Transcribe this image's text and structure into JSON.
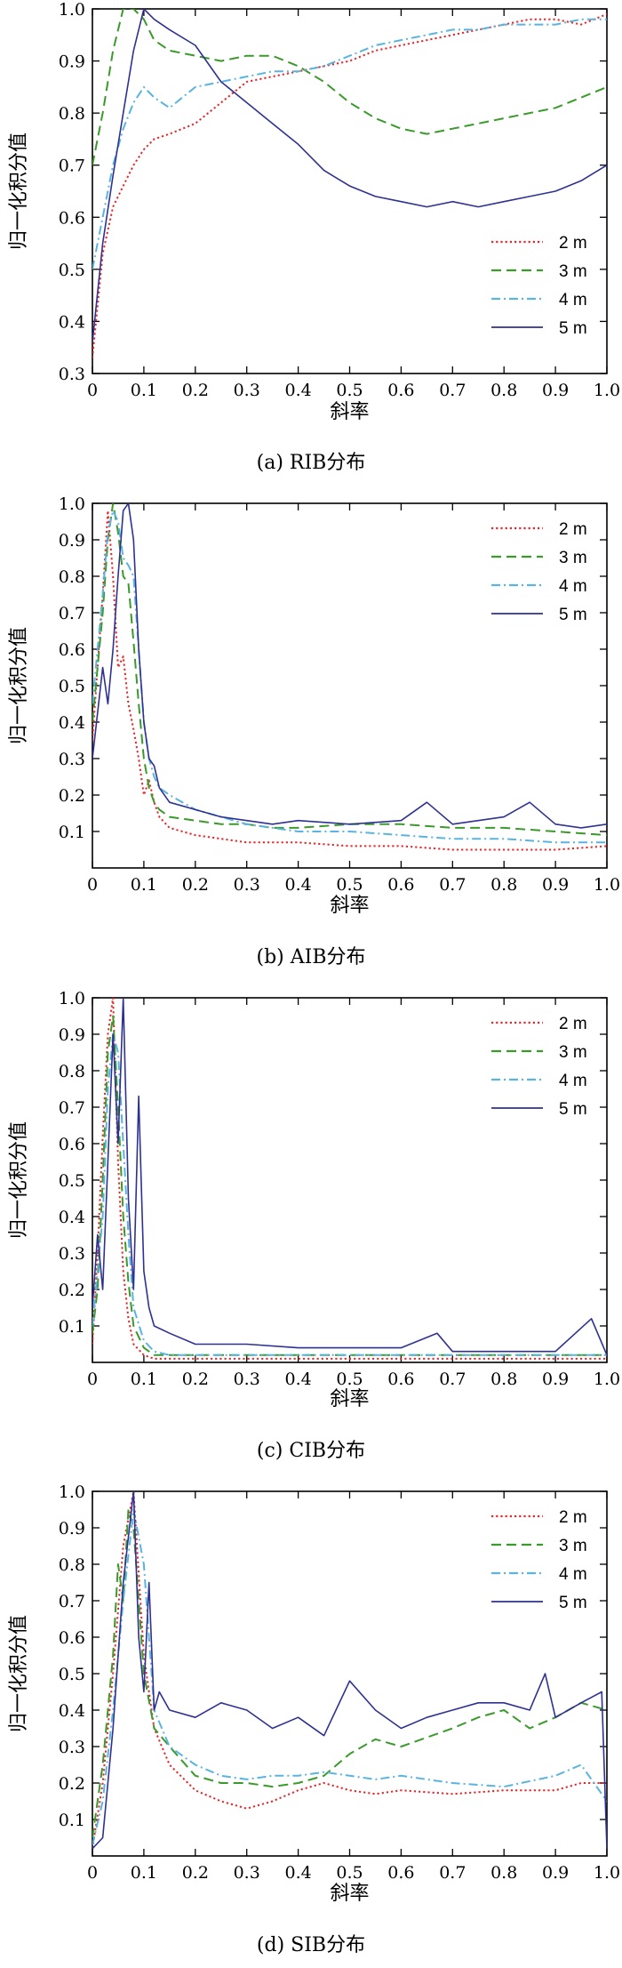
{
  "chart_data": [
    {
      "type": "line",
      "caption": "(a) RIB分布",
      "xlabel": "斜率",
      "ylabel": "归一化积分值",
      "xlim": [
        0,
        1.0
      ],
      "ylim": [
        0.3,
        1.0
      ],
      "xticks": [
        "0",
        "0.1",
        "0.2",
        "0.3",
        "0.4",
        "0.5",
        "0.6",
        "0.7",
        "0.8",
        "0.9",
        "1.0"
      ],
      "yticks": [
        "0.3",
        "0.4",
        "0.5",
        "0.6",
        "0.7",
        "0.8",
        "0.9",
        "1.0"
      ],
      "legend_position": "bottom-right",
      "series": [
        {
          "name": "2 m",
          "color": "#e8262a",
          "dash": "dotted",
          "x": [
            0,
            0.02,
            0.04,
            0.06,
            0.08,
            0.1,
            0.12,
            0.15,
            0.2,
            0.25,
            0.3,
            0.35,
            0.4,
            0.45,
            0.5,
            0.55,
            0.6,
            0.65,
            0.7,
            0.75,
            0.8,
            0.85,
            0.9,
            0.95,
            1.0
          ],
          "y": [
            0.33,
            0.53,
            0.62,
            0.66,
            0.7,
            0.73,
            0.75,
            0.76,
            0.78,
            0.82,
            0.86,
            0.87,
            0.88,
            0.89,
            0.9,
            0.92,
            0.93,
            0.94,
            0.95,
            0.96,
            0.97,
            0.98,
            0.98,
            0.97,
            0.99
          ]
        },
        {
          "name": "3 m",
          "color": "#3a9a2a",
          "dash": "dashed",
          "x": [
            0,
            0.02,
            0.04,
            0.06,
            0.08,
            0.1,
            0.12,
            0.15,
            0.2,
            0.25,
            0.3,
            0.35,
            0.4,
            0.45,
            0.5,
            0.55,
            0.6,
            0.65,
            0.7,
            0.75,
            0.8,
            0.85,
            0.9,
            0.95,
            1.0
          ],
          "y": [
            0.7,
            0.8,
            0.92,
            1.0,
            1.0,
            0.98,
            0.94,
            0.92,
            0.91,
            0.9,
            0.91,
            0.91,
            0.89,
            0.86,
            0.82,
            0.79,
            0.77,
            0.76,
            0.77,
            0.78,
            0.79,
            0.8,
            0.81,
            0.83,
            0.85
          ]
        },
        {
          "name": "4 m",
          "color": "#5ab4e0",
          "dash": "dashdot",
          "x": [
            0,
            0.02,
            0.04,
            0.06,
            0.08,
            0.1,
            0.12,
            0.15,
            0.2,
            0.25,
            0.3,
            0.35,
            0.4,
            0.45,
            0.5,
            0.55,
            0.6,
            0.65,
            0.7,
            0.75,
            0.8,
            0.85,
            0.9,
            0.95,
            1.0
          ],
          "y": [
            0.5,
            0.6,
            0.7,
            0.77,
            0.82,
            0.85,
            0.83,
            0.81,
            0.85,
            0.86,
            0.87,
            0.88,
            0.88,
            0.89,
            0.91,
            0.93,
            0.94,
            0.95,
            0.96,
            0.96,
            0.97,
            0.97,
            0.97,
            0.98,
            0.98
          ]
        },
        {
          "name": "5 m",
          "color": "#2e3192",
          "dash": "solid",
          "x": [
            0,
            0.02,
            0.04,
            0.06,
            0.08,
            0.1,
            0.12,
            0.15,
            0.2,
            0.25,
            0.3,
            0.35,
            0.4,
            0.45,
            0.5,
            0.55,
            0.6,
            0.65,
            0.7,
            0.75,
            0.8,
            0.85,
            0.9,
            0.95,
            1.0
          ],
          "y": [
            0.36,
            0.55,
            0.68,
            0.8,
            0.92,
            1.0,
            0.98,
            0.96,
            0.93,
            0.86,
            0.82,
            0.78,
            0.74,
            0.69,
            0.66,
            0.64,
            0.63,
            0.62,
            0.63,
            0.62,
            0.63,
            0.64,
            0.65,
            0.67,
            0.7
          ]
        }
      ]
    },
    {
      "type": "line",
      "caption": "(b) AIB分布",
      "xlabel": "斜率",
      "ylabel": "归一化积分值",
      "xlim": [
        0,
        1.0
      ],
      "ylim": [
        0,
        1.0
      ],
      "xticks": [
        "0",
        "0.1",
        "0.2",
        "0.3",
        "0.4",
        "0.5",
        "0.6",
        "0.7",
        "0.8",
        "0.9",
        "1.0"
      ],
      "yticks": [
        "0.1",
        "0.2",
        "0.3",
        "0.4",
        "0.5",
        "0.6",
        "0.7",
        "0.8",
        "0.9",
        "1.0"
      ],
      "legend_position": "top-right",
      "series": [
        {
          "name": "2 m",
          "color": "#e8262a",
          "dash": "dotted",
          "x": [
            0,
            0.02,
            0.03,
            0.04,
            0.05,
            0.06,
            0.07,
            0.08,
            0.09,
            0.1,
            0.11,
            0.12,
            0.13,
            0.15,
            0.2,
            0.25,
            0.3,
            0.35,
            0.4,
            0.5,
            0.6,
            0.7,
            0.8,
            0.9,
            1.0
          ],
          "y": [
            0.35,
            0.75,
            0.98,
            0.8,
            0.55,
            0.58,
            0.45,
            0.38,
            0.3,
            0.2,
            0.24,
            0.18,
            0.14,
            0.11,
            0.09,
            0.08,
            0.07,
            0.07,
            0.07,
            0.06,
            0.06,
            0.05,
            0.05,
            0.05,
            0.06
          ]
        },
        {
          "name": "3 m",
          "color": "#3a9a2a",
          "dash": "dashed",
          "x": [
            0,
            0.02,
            0.03,
            0.04,
            0.05,
            0.06,
            0.07,
            0.08,
            0.09,
            0.1,
            0.11,
            0.12,
            0.13,
            0.15,
            0.2,
            0.25,
            0.3,
            0.35,
            0.4,
            0.5,
            0.6,
            0.7,
            0.8,
            0.9,
            1.0
          ],
          "y": [
            0.4,
            0.7,
            0.9,
            1.0,
            0.92,
            0.8,
            0.78,
            0.62,
            0.45,
            0.3,
            0.22,
            0.18,
            0.16,
            0.14,
            0.13,
            0.12,
            0.12,
            0.11,
            0.11,
            0.12,
            0.12,
            0.11,
            0.11,
            0.1,
            0.09
          ]
        },
        {
          "name": "4 m",
          "color": "#5ab4e0",
          "dash": "dashdot",
          "x": [
            0,
            0.02,
            0.03,
            0.04,
            0.05,
            0.06,
            0.07,
            0.08,
            0.09,
            0.1,
            0.11,
            0.12,
            0.13,
            0.15,
            0.2,
            0.25,
            0.3,
            0.35,
            0.4,
            0.5,
            0.6,
            0.7,
            0.8,
            0.9,
            1.0
          ],
          "y": [
            0.45,
            0.75,
            0.92,
            0.98,
            0.95,
            0.85,
            0.83,
            0.8,
            0.6,
            0.4,
            0.3,
            0.25,
            0.22,
            0.2,
            0.16,
            0.14,
            0.12,
            0.11,
            0.1,
            0.1,
            0.09,
            0.08,
            0.08,
            0.07,
            0.07
          ]
        },
        {
          "name": "5 m",
          "color": "#2e3192",
          "dash": "solid",
          "x": [
            0,
            0.02,
            0.03,
            0.04,
            0.05,
            0.06,
            0.07,
            0.08,
            0.09,
            0.1,
            0.11,
            0.12,
            0.13,
            0.15,
            0.2,
            0.25,
            0.3,
            0.35,
            0.4,
            0.5,
            0.6,
            0.65,
            0.7,
            0.8,
            0.85,
            0.9,
            0.95,
            1.0
          ],
          "y": [
            0.3,
            0.55,
            0.45,
            0.6,
            0.8,
            0.98,
            1.0,
            0.9,
            0.6,
            0.4,
            0.3,
            0.28,
            0.22,
            0.18,
            0.16,
            0.14,
            0.13,
            0.12,
            0.13,
            0.12,
            0.13,
            0.18,
            0.12,
            0.14,
            0.18,
            0.12,
            0.11,
            0.12
          ]
        }
      ]
    },
    {
      "type": "line",
      "caption": "(c) CIB分布",
      "xlabel": "斜率",
      "ylabel": "归一化积分值",
      "xlim": [
        0,
        1.0
      ],
      "ylim": [
        0,
        1.0
      ],
      "xticks": [
        "0",
        "0.1",
        "0.2",
        "0.3",
        "0.4",
        "0.5",
        "0.6",
        "0.7",
        "0.8",
        "0.9",
        "1.0"
      ],
      "yticks": [
        "0.1",
        "0.2",
        "0.3",
        "0.4",
        "0.5",
        "0.6",
        "0.7",
        "0.8",
        "0.9",
        "1.0"
      ],
      "legend_position": "top-right",
      "series": [
        {
          "name": "2 m",
          "color": "#e8262a",
          "dash": "dotted",
          "x": [
            0,
            0.01,
            0.02,
            0.03,
            0.04,
            0.05,
            0.06,
            0.07,
            0.08,
            0.1,
            0.12,
            0.15,
            0.2,
            0.3,
            0.4,
            0.5,
            0.6,
            0.7,
            0.8,
            0.9,
            1.0
          ],
          "y": [
            0.05,
            0.3,
            0.62,
            0.9,
            1.0,
            0.55,
            0.25,
            0.12,
            0.05,
            0.02,
            0.01,
            0.01,
            0.01,
            0.01,
            0.01,
            0.01,
            0.01,
            0.01,
            0.01,
            0.01,
            0.01
          ]
        },
        {
          "name": "3 m",
          "color": "#3a9a2a",
          "dash": "dashed",
          "x": [
            0,
            0.01,
            0.02,
            0.03,
            0.04,
            0.05,
            0.06,
            0.07,
            0.08,
            0.1,
            0.12,
            0.15,
            0.2,
            0.3,
            0.4,
            0.5,
            0.6,
            0.7,
            0.8,
            0.9,
            1.0
          ],
          "y": [
            0.08,
            0.2,
            0.5,
            0.85,
            0.95,
            0.7,
            0.4,
            0.22,
            0.1,
            0.04,
            0.02,
            0.02,
            0.02,
            0.02,
            0.02,
            0.02,
            0.02,
            0.02,
            0.02,
            0.02,
            0.02
          ]
        },
        {
          "name": "4 m",
          "color": "#5ab4e0",
          "dash": "dashdot",
          "x": [
            0,
            0.01,
            0.02,
            0.03,
            0.04,
            0.05,
            0.06,
            0.07,
            0.08,
            0.1,
            0.12,
            0.15,
            0.2,
            0.3,
            0.4,
            0.5,
            0.6,
            0.7,
            0.8,
            0.9,
            1.0
          ],
          "y": [
            0.1,
            0.25,
            0.4,
            0.75,
            0.9,
            0.85,
            0.6,
            0.35,
            0.15,
            0.06,
            0.03,
            0.02,
            0.02,
            0.02,
            0.02,
            0.02,
            0.02,
            0.02,
            0.02,
            0.02,
            0.02
          ]
        },
        {
          "name": "5 m",
          "color": "#2e3192",
          "dash": "solid",
          "x": [
            0,
            0.01,
            0.02,
            0.03,
            0.04,
            0.05,
            0.06,
            0.07,
            0.08,
            0.09,
            0.1,
            0.11,
            0.12,
            0.15,
            0.2,
            0.3,
            0.4,
            0.5,
            0.6,
            0.67,
            0.7,
            0.8,
            0.9,
            0.97,
            1.0
          ],
          "y": [
            0.15,
            0.35,
            0.2,
            0.55,
            0.9,
            0.6,
            1.0,
            0.45,
            0.2,
            0.73,
            0.25,
            0.15,
            0.1,
            0.08,
            0.05,
            0.05,
            0.04,
            0.04,
            0.04,
            0.08,
            0.03,
            0.03,
            0.03,
            0.12,
            0.02
          ]
        }
      ]
    },
    {
      "type": "line",
      "caption": "(d) SIB分布",
      "xlabel": "斜率",
      "ylabel": "归一化积分值",
      "xlim": [
        0,
        1.0
      ],
      "ylim": [
        0,
        1.0
      ],
      "xticks": [
        "0",
        "0.1",
        "0.2",
        "0.3",
        "0.4",
        "0.5",
        "0.6",
        "0.7",
        "0.8",
        "0.9",
        "1.0"
      ],
      "yticks": [
        "0.1",
        "0.2",
        "0.3",
        "0.4",
        "0.5",
        "0.6",
        "0.7",
        "0.8",
        "0.9",
        "1.0"
      ],
      "legend_position": "top-right",
      "series": [
        {
          "name": "2 m",
          "color": "#e8262a",
          "dash": "dotted",
          "x": [
            0,
            0.02,
            0.04,
            0.06,
            0.08,
            0.1,
            0.12,
            0.15,
            0.2,
            0.25,
            0.3,
            0.35,
            0.4,
            0.45,
            0.5,
            0.55,
            0.6,
            0.7,
            0.8,
            0.9,
            0.95,
            1.0
          ],
          "y": [
            0.02,
            0.2,
            0.5,
            0.85,
            1.0,
            0.55,
            0.35,
            0.25,
            0.18,
            0.15,
            0.13,
            0.15,
            0.18,
            0.2,
            0.18,
            0.17,
            0.18,
            0.17,
            0.18,
            0.18,
            0.2,
            0.2
          ]
        },
        {
          "name": "3 m",
          "color": "#3a9a2a",
          "dash": "dashed",
          "x": [
            0,
            0.02,
            0.04,
            0.05,
            0.06,
            0.07,
            0.08,
            0.1,
            0.12,
            0.15,
            0.2,
            0.25,
            0.3,
            0.35,
            0.4,
            0.45,
            0.5,
            0.55,
            0.6,
            0.7,
            0.75,
            0.8,
            0.85,
            0.9,
            0.95,
            1.0
          ],
          "y": [
            0.05,
            0.25,
            0.55,
            0.8,
            0.7,
            0.95,
            0.9,
            0.5,
            0.35,
            0.3,
            0.22,
            0.2,
            0.2,
            0.19,
            0.2,
            0.22,
            0.28,
            0.32,
            0.3,
            0.35,
            0.38,
            0.4,
            0.35,
            0.38,
            0.42,
            0.4
          ]
        },
        {
          "name": "4 m",
          "color": "#5ab4e0",
          "dash": "dashdot",
          "x": [
            0,
            0.02,
            0.04,
            0.06,
            0.08,
            0.1,
            0.12,
            0.15,
            0.2,
            0.25,
            0.3,
            0.35,
            0.4,
            0.45,
            0.5,
            0.55,
            0.6,
            0.7,
            0.8,
            0.9,
            0.95,
            1.0
          ],
          "y": [
            0.03,
            0.15,
            0.4,
            0.7,
            0.95,
            0.8,
            0.4,
            0.3,
            0.25,
            0.22,
            0.21,
            0.22,
            0.22,
            0.23,
            0.22,
            0.21,
            0.22,
            0.2,
            0.19,
            0.22,
            0.25,
            0.15
          ]
        },
        {
          "name": "5 m",
          "color": "#2e3192",
          "dash": "solid",
          "x": [
            0,
            0.02,
            0.04,
            0.06,
            0.08,
            0.09,
            0.1,
            0.11,
            0.12,
            0.13,
            0.15,
            0.2,
            0.25,
            0.3,
            0.35,
            0.4,
            0.45,
            0.5,
            0.55,
            0.6,
            0.65,
            0.7,
            0.75,
            0.8,
            0.85,
            0.88,
            0.9,
            0.95,
            0.99,
            1.0
          ],
          "y": [
            0.02,
            0.05,
            0.35,
            0.75,
            1.0,
            0.6,
            0.45,
            0.75,
            0.4,
            0.45,
            0.4,
            0.38,
            0.42,
            0.4,
            0.35,
            0.38,
            0.33,
            0.48,
            0.4,
            0.35,
            0.38,
            0.4,
            0.42,
            0.42,
            0.4,
            0.5,
            0.38,
            0.42,
            0.45,
            0.02
          ]
        }
      ]
    }
  ]
}
